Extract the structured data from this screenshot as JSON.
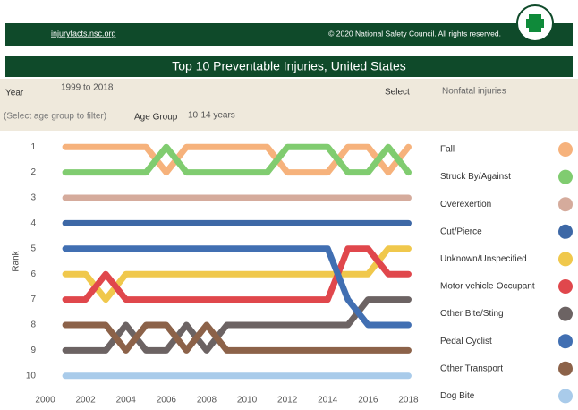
{
  "header": {
    "url": "injuryfacts.nsc.org",
    "copyright": "© 2020 National Safety Council. All rights reserved."
  },
  "filters": {
    "year_label": "Year",
    "year_value": "1999 to 2018",
    "select_label": "Select",
    "select_value": "Nonfatal injuries",
    "hint": "(Select age group to filter)",
    "age_label": "Age Group",
    "age_value": "10-14 years"
  },
  "chart_data": {
    "type": "line",
    "title": "Top 10 Preventable Injuries, United States",
    "y_label": "Rank",
    "x": [
      2001,
      2002,
      2003,
      2004,
      2005,
      2006,
      2007,
      2008,
      2009,
      2010,
      2011,
      2012,
      2013,
      2014,
      2015,
      2016,
      2017,
      2018
    ],
    "xlim": [
      1999.4,
      2018.6
    ],
    "xticks": [
      2000,
      2002,
      2004,
      2006,
      2008,
      2010,
      2012,
      2014,
      2016,
      2018
    ],
    "ylim": [
      0.5,
      10.5
    ],
    "yticks": [
      1,
      2,
      3,
      4,
      5,
      6,
      7,
      8,
      9,
      10
    ],
    "y_reversed": true,
    "series": [
      {
        "name": "Fall",
        "color": "#f6b27c",
        "values": [
          1,
          1,
          1,
          1,
          1,
          2,
          1,
          1,
          1,
          1,
          1,
          2,
          2,
          2,
          1,
          1,
          2,
          1
        ]
      },
      {
        "name": "Struck By/Against",
        "color": "#80cc70",
        "values": [
          2,
          2,
          2,
          2,
          2,
          1,
          2,
          2,
          2,
          2,
          2,
          1,
          1,
          1,
          2,
          2,
          1,
          2
        ]
      },
      {
        "name": "Overexertion",
        "color": "#d5ab9c",
        "values": [
          3,
          3,
          3,
          3,
          3,
          3,
          3,
          3,
          3,
          3,
          3,
          3,
          3,
          3,
          3,
          3,
          3,
          3
        ]
      },
      {
        "name": "Cut/Pierce",
        "color": "#3d68a6",
        "values": [
          4,
          4,
          4,
          4,
          4,
          4,
          4,
          4,
          4,
          4,
          4,
          4,
          4,
          4,
          4,
          4,
          4,
          4
        ]
      },
      {
        "name": "Unknown/Unspecified",
        "color": "#f0c84c",
        "values": [
          6,
          6,
          7,
          6,
          6,
          6,
          6,
          6,
          6,
          6,
          6,
          6,
          6,
          6,
          6,
          6,
          5,
          5
        ]
      },
      {
        "name": "Motor vehicle-Occupant",
        "color": "#e0474c",
        "values": [
          7,
          7,
          6,
          7,
          7,
          7,
          7,
          7,
          7,
          7,
          7,
          7,
          7,
          7,
          5,
          5,
          6,
          6
        ]
      },
      {
        "name": "Other Bite/Sting",
        "color": "#6c6363",
        "values": [
          9,
          9,
          9,
          8,
          9,
          9,
          8,
          9,
          8,
          8,
          8,
          8,
          8,
          8,
          8,
          7,
          7,
          7
        ]
      },
      {
        "name": "Pedal Cyclist",
        "color": "#416fb2",
        "values": [
          5,
          5,
          5,
          5,
          5,
          5,
          5,
          5,
          5,
          5,
          5,
          5,
          5,
          5,
          7,
          8,
          8,
          8
        ]
      },
      {
        "name": "Other Transport",
        "color": "#8c6249",
        "values": [
          8,
          8,
          8,
          9,
          8,
          8,
          9,
          8,
          9,
          9,
          9,
          9,
          9,
          9,
          9,
          9,
          9,
          9
        ]
      },
      {
        "name": "Dog Bite",
        "color": "#a9cbea",
        "values": [
          10,
          10,
          10,
          10,
          10,
          10,
          10,
          10,
          10,
          10,
          10,
          10,
          10,
          10,
          10,
          10,
          10,
          10
        ]
      }
    ]
  }
}
